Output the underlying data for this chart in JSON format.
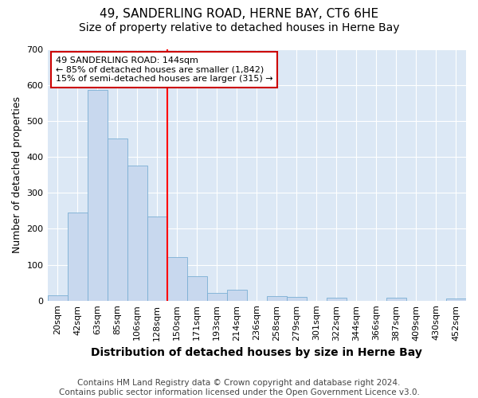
{
  "title": "49, SANDERLING ROAD, HERNE BAY, CT6 6HE",
  "subtitle": "Size of property relative to detached houses in Herne Bay",
  "xlabel": "Distribution of detached houses by size in Herne Bay",
  "ylabel": "Number of detached properties",
  "bin_labels": [
    "20sqm",
    "42sqm",
    "63sqm",
    "85sqm",
    "106sqm",
    "128sqm",
    "150sqm",
    "171sqm",
    "193sqm",
    "214sqm",
    "236sqm",
    "258sqm",
    "279sqm",
    "301sqm",
    "322sqm",
    "344sqm",
    "366sqm",
    "387sqm",
    "409sqm",
    "430sqm",
    "452sqm"
  ],
  "bar_heights": [
    15,
    245,
    585,
    450,
    375,
    235,
    122,
    67,
    22,
    30,
    0,
    12,
    10,
    0,
    8,
    0,
    0,
    8,
    0,
    0,
    5
  ],
  "bar_color": "#c8d8ee",
  "bar_edgecolor": "#7aafd4",
  "vline_x_index": 6,
  "annotation_text": "49 SANDERLING ROAD: 144sqm\n← 85% of detached houses are smaller (1,842)\n15% of semi-detached houses are larger (315) →",
  "annotation_box_facecolor": "#ffffff",
  "annotation_box_edgecolor": "#cc0000",
  "ylim": [
    0,
    700
  ],
  "yticks": [
    0,
    100,
    200,
    300,
    400,
    500,
    600,
    700
  ],
  "figure_bg_color": "#ffffff",
  "plot_bg_color": "#dce8f5",
  "grid_color": "#ffffff",
  "title_fontsize": 11,
  "subtitle_fontsize": 10,
  "xlabel_fontsize": 10,
  "ylabel_fontsize": 9,
  "tick_fontsize": 8,
  "annotation_fontsize": 8,
  "footer_fontsize": 7.5,
  "footer_text": "Contains HM Land Registry data © Crown copyright and database right 2024.\nContains public sector information licensed under the Open Government Licence v3.0."
}
